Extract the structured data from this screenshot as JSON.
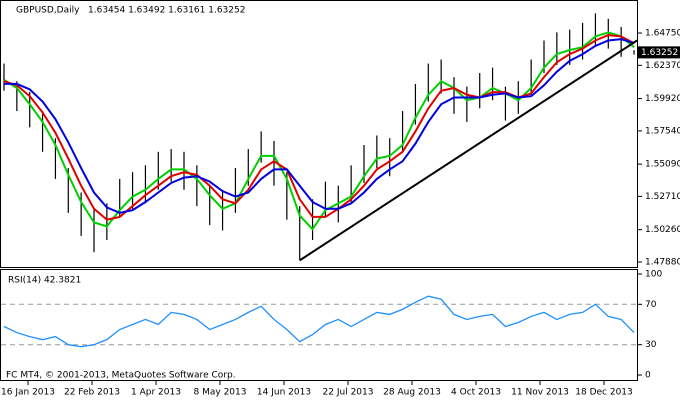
{
  "chart_data": {
    "type": "ohlc",
    "header": [
      "GBPUSD,Daily",
      "1.63454 1.63492 1.63161 1.63252"
    ],
    "price_box": "1.63252",
    "ylim": [
      1.4751,
      1.6689
    ],
    "yticks": [
      {
        "value": 1.6475,
        "label": "1.64750"
      },
      {
        "value": 1.6237,
        "label": "1.62370"
      },
      {
        "value": 1.5992,
        "label": "1.59920"
      },
      {
        "value": 1.5754,
        "label": "1.57540"
      },
      {
        "value": 1.5509,
        "label": "1.55090"
      },
      {
        "value": 1.5271,
        "label": "1.52710"
      },
      {
        "value": 1.5026,
        "label": "1.50260"
      },
      {
        "value": 1.4788,
        "label": "1.47880"
      }
    ],
    "x_labels": [
      "16 Jan 2013",
      "22 Feb 2013",
      "1 Apr 2013",
      "8 May 2013",
      "14 Jun 2013",
      "22 Jul 2013",
      "28 Aug 2013",
      "4 Oct 2013",
      "11 Nov 2013",
      "18 Dec 2013"
    ],
    "bar_color": "#000000",
    "high": [
      1.625,
      1.612,
      1.604,
      1.59,
      1.57,
      1.548,
      1.53,
      1.518,
      1.522,
      1.54,
      1.545,
      1.55,
      1.56,
      1.562,
      1.56,
      1.55,
      1.535,
      1.532,
      1.548,
      1.562,
      1.575,
      1.568,
      1.545,
      1.52,
      1.525,
      1.538,
      1.535,
      1.55,
      1.565,
      1.572,
      1.57,
      1.59,
      1.61,
      1.625,
      1.628,
      1.615,
      1.608,
      1.618,
      1.622,
      1.608,
      1.612,
      1.628,
      1.642,
      1.648,
      1.65,
      1.655,
      1.662,
      1.658,
      1.652,
      1.6349
    ],
    "low": [
      1.605,
      1.59,
      1.578,
      1.56,
      1.54,
      1.515,
      1.498,
      1.486,
      1.495,
      1.512,
      1.518,
      1.522,
      1.532,
      1.538,
      1.532,
      1.52,
      1.506,
      1.502,
      1.515,
      1.535,
      1.552,
      1.535,
      1.51,
      1.48,
      1.495,
      1.512,
      1.508,
      1.522,
      1.537,
      1.548,
      1.542,
      1.56,
      1.58,
      1.597,
      1.603,
      1.588,
      1.582,
      1.592,
      1.598,
      1.583,
      1.588,
      1.602,
      1.618,
      1.624,
      1.624,
      1.628,
      1.638,
      1.636,
      1.63,
      1.6316
    ],
    "series": [
      {
        "color": "#00d000",
        "values": [
          1.613,
          1.607,
          1.595,
          1.582,
          1.565,
          1.543,
          1.523,
          1.508,
          1.505,
          1.517,
          1.527,
          1.532,
          1.54,
          1.547,
          1.547,
          1.54,
          1.528,
          1.518,
          1.522,
          1.54,
          1.557,
          1.557,
          1.54,
          1.513,
          1.503,
          1.517,
          1.522,
          1.527,
          1.542,
          1.555,
          1.557,
          1.565,
          1.585,
          1.602,
          1.612,
          1.607,
          1.598,
          1.6,
          1.607,
          1.603,
          1.598,
          1.607,
          1.622,
          1.632,
          1.635,
          1.637,
          1.645,
          1.648,
          1.645,
          1.637
        ]
      },
      {
        "color": "#e00000",
        "values": [
          1.612,
          1.609,
          1.601,
          1.589,
          1.574,
          1.555,
          1.535,
          1.518,
          1.51,
          1.512,
          1.52,
          1.528,
          1.535,
          1.542,
          1.545,
          1.543,
          1.535,
          1.525,
          1.522,
          1.532,
          1.547,
          1.553,
          1.547,
          1.525,
          1.512,
          1.512,
          1.518,
          1.525,
          1.535,
          1.547,
          1.553,
          1.56,
          1.575,
          1.592,
          1.605,
          1.607,
          1.602,
          1.6,
          1.604,
          1.604,
          1.6,
          1.603,
          1.615,
          1.626,
          1.632,
          1.636,
          1.642,
          1.646,
          1.645,
          1.64
        ]
      },
      {
        "color": "#0000e0",
        "values": [
          1.61,
          1.61,
          1.606,
          1.597,
          1.584,
          1.567,
          1.548,
          1.53,
          1.519,
          1.515,
          1.517,
          1.523,
          1.53,
          1.537,
          1.541,
          1.542,
          1.538,
          1.531,
          1.527,
          1.53,
          1.54,
          1.547,
          1.547,
          1.535,
          1.523,
          1.518,
          1.518,
          1.522,
          1.53,
          1.54,
          1.547,
          1.553,
          1.566,
          1.582,
          1.595,
          1.6,
          1.6,
          1.6,
          1.602,
          1.603,
          1.6,
          1.601,
          1.609,
          1.619,
          1.627,
          1.632,
          1.638,
          1.642,
          1.643,
          1.64
        ]
      }
    ],
    "trendline": {
      "color": "#000000",
      "values": [
        1.48,
        1.642
      ]
    },
    "rsi": {
      "title": "RSI(14) 42.3821",
      "color": "#1e90ff",
      "ylim": [
        0,
        100
      ],
      "yticks": [
        100,
        70,
        30,
        0
      ],
      "levels": [
        70,
        30
      ],
      "values": [
        48,
        42,
        38,
        35,
        38,
        30,
        28,
        30,
        35,
        45,
        50,
        55,
        50,
        62,
        60,
        55,
        45,
        50,
        55,
        62,
        68,
        55,
        45,
        33,
        40,
        50,
        55,
        48,
        55,
        62,
        60,
        65,
        72,
        78,
        75,
        60,
        55,
        58,
        60,
        48,
        52,
        58,
        62,
        55,
        60,
        62,
        70,
        58,
        55,
        42
      ]
    },
    "footer": "FC MT4, © 2001-2013, MetaQuotes Software Corp."
  }
}
